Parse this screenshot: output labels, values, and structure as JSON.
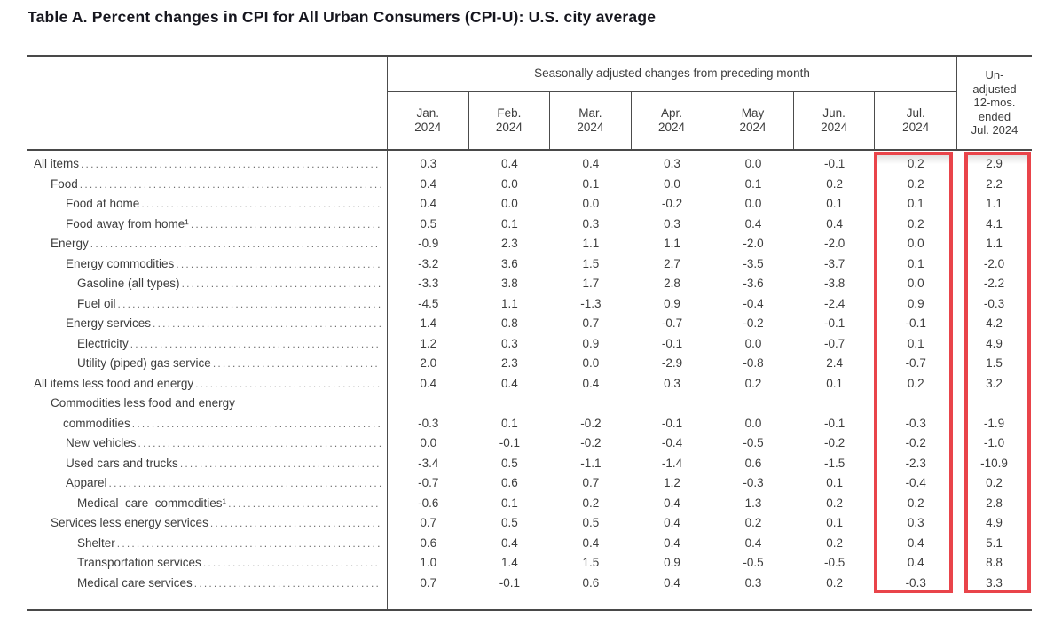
{
  "title": "Table A. Percent changes in CPI for All Urban Consumers (CPI-U): U.S. city average",
  "table": {
    "group_header": "Seasonally adjusted changes from preceding month",
    "unadjusted_header": "Un-\nadjusted\n12-mos.\nended\nJul. 2024",
    "months": [
      {
        "abbr": "Jan.",
        "year": "2024"
      },
      {
        "abbr": "Feb.",
        "year": "2024"
      },
      {
        "abbr": "Mar.",
        "year": "2024"
      },
      {
        "abbr": "Apr.",
        "year": "2024"
      },
      {
        "abbr": "May",
        "year": "2024"
      },
      {
        "abbr": "Jun.",
        "year": "2024"
      },
      {
        "abbr": "Jul.",
        "year": "2024"
      }
    ],
    "rows": [
      {
        "label": "All items",
        "indent": 0,
        "values": [
          "0.3",
          "0.4",
          "0.4",
          "0.3",
          "0.0",
          "-0.1",
          "0.2",
          "2.9"
        ]
      },
      {
        "label": "Food",
        "indent": 1,
        "values": [
          "0.4",
          "0.0",
          "0.1",
          "0.0",
          "0.1",
          "0.2",
          "0.2",
          "2.2"
        ]
      },
      {
        "label": "Food at home",
        "indent": 2,
        "values": [
          "0.4",
          "0.0",
          "0.0",
          "-0.2",
          "0.0",
          "0.1",
          "0.1",
          "1.1"
        ]
      },
      {
        "label": "Food away from home¹",
        "indent": 2,
        "values": [
          "0.5",
          "0.1",
          "0.3",
          "0.3",
          "0.4",
          "0.4",
          "0.2",
          "4.1"
        ]
      },
      {
        "label": "Energy",
        "indent": 1,
        "values": [
          "-0.9",
          "2.3",
          "1.1",
          "1.1",
          "-2.0",
          "-2.0",
          "0.0",
          "1.1"
        ]
      },
      {
        "label": "Energy commodities",
        "indent": 2,
        "values": [
          "-3.2",
          "3.6",
          "1.5",
          "2.7",
          "-3.5",
          "-3.7",
          "0.1",
          "-2.0"
        ]
      },
      {
        "label": "Gasoline (all types)",
        "indent": 3,
        "values": [
          "-3.3",
          "3.8",
          "1.7",
          "2.8",
          "-3.6",
          "-3.8",
          "0.0",
          "-2.2"
        ]
      },
      {
        "label": "Fuel oil",
        "indent": 3,
        "values": [
          "-4.5",
          "1.1",
          "-1.3",
          "0.9",
          "-0.4",
          "-2.4",
          "0.9",
          "-0.3"
        ]
      },
      {
        "label": "Energy services",
        "indent": 2,
        "values": [
          "1.4",
          "0.8",
          "0.7",
          "-0.7",
          "-0.2",
          "-0.1",
          "-0.1",
          "4.2"
        ]
      },
      {
        "label": "Electricity",
        "indent": 3,
        "values": [
          "1.2",
          "0.3",
          "0.9",
          "-0.1",
          "0.0",
          "-0.7",
          "0.1",
          "4.9"
        ]
      },
      {
        "label": "Utility (piped) gas service",
        "indent": 3,
        "values": [
          "2.0",
          "2.3",
          "0.0",
          "-2.9",
          "-0.8",
          "2.4",
          "-0.7",
          "1.5"
        ]
      },
      {
        "label": "All items less food and energy",
        "indent": 0,
        "values": [
          "0.4",
          "0.4",
          "0.4",
          "0.3",
          "0.2",
          "0.1",
          "0.2",
          "3.2"
        ]
      },
      {
        "label": "Commodities less food and energy",
        "label2": "commodities",
        "indent": 1,
        "values": [
          "-0.3",
          "0.1",
          "-0.2",
          "-0.1",
          "0.0",
          "-0.1",
          "-0.3",
          "-1.9"
        ]
      },
      {
        "label": "New vehicles",
        "indent": 2,
        "values": [
          "0.0",
          "-0.1",
          "-0.2",
          "-0.4",
          "-0.5",
          "-0.2",
          "-0.2",
          "-1.0"
        ]
      },
      {
        "label": "Used cars and trucks",
        "indent": 2,
        "values": [
          "-3.4",
          "0.5",
          "-1.1",
          "-1.4",
          "0.6",
          "-1.5",
          "-2.3",
          "-10.9"
        ]
      },
      {
        "label": "Apparel",
        "indent": 2,
        "values": [
          "-0.7",
          "0.6",
          "0.7",
          "1.2",
          "-0.3",
          "0.1",
          "-0.4",
          "0.2"
        ]
      },
      {
        "label": "Medical  care  commodities¹",
        "indent": 3,
        "values": [
          "-0.6",
          "0.1",
          "0.2",
          "0.4",
          "1.3",
          "0.2",
          "0.2",
          "2.8"
        ]
      },
      {
        "label": "Services less energy services",
        "indent": 1,
        "values": [
          "0.7",
          "0.5",
          "0.5",
          "0.4",
          "0.2",
          "0.1",
          "0.3",
          "4.9"
        ]
      },
      {
        "label": "Shelter",
        "indent": 3,
        "values": [
          "0.6",
          "0.4",
          "0.4",
          "0.4",
          "0.4",
          "0.2",
          "0.4",
          "5.1"
        ]
      },
      {
        "label": "Transportation services",
        "indent": 3,
        "values": [
          "1.0",
          "1.4",
          "1.5",
          "0.9",
          "-0.5",
          "-0.5",
          "0.4",
          "8.8"
        ]
      },
      {
        "label": "Medical care services",
        "indent": 3,
        "values": [
          "0.7",
          "-0.1",
          "0.6",
          "0.4",
          "0.3",
          "0.2",
          "-0.3",
          "3.3"
        ]
      }
    ]
  },
  "highlights": [
    {
      "target": "Jul. 2024 column",
      "color": "#e9444a"
    },
    {
      "target": "Un-adjusted 12-mos. ended Jul. 2024 column",
      "color": "#e9444a"
    }
  ]
}
